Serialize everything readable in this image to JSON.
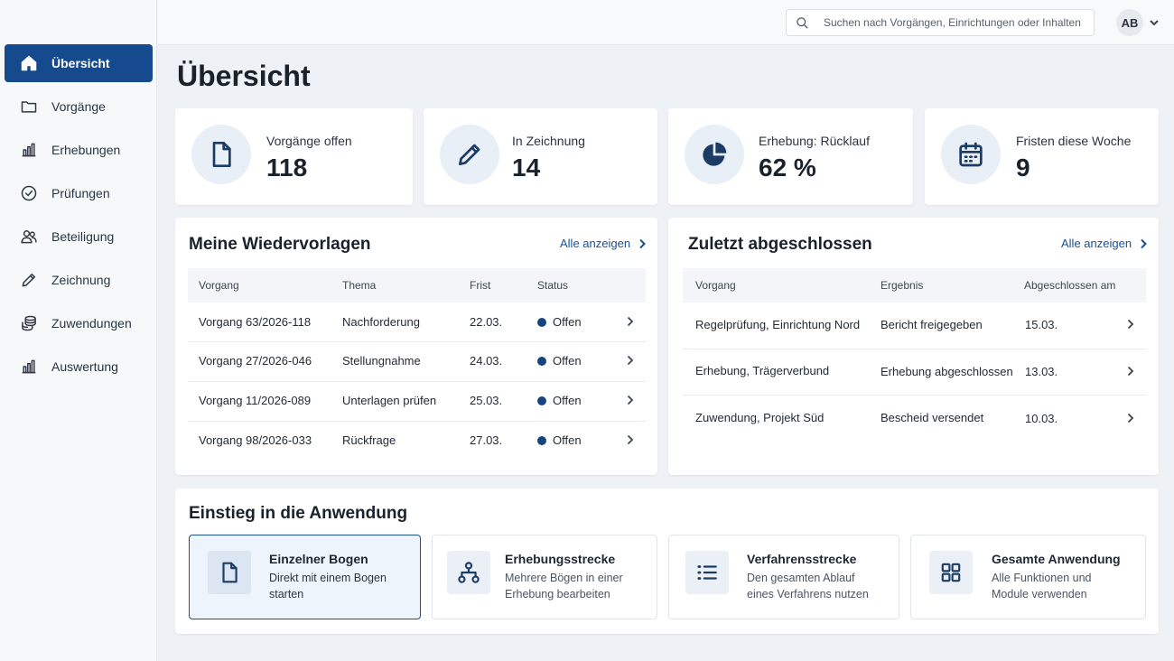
{
  "sidebar": {
    "items": [
      {
        "label": "Übersicht",
        "icon": "home-icon",
        "active": true
      },
      {
        "label": "Vorgänge",
        "icon": "folder-icon"
      },
      {
        "label": "Erhebungen",
        "icon": "bar-chart-icon"
      },
      {
        "label": "Prüfungen",
        "icon": "check-circle-icon"
      },
      {
        "label": "Beteiligung",
        "icon": "users-icon"
      },
      {
        "label": "Zeichnung",
        "icon": "pencil-icon"
      },
      {
        "label": "Zuwendungen",
        "icon": "coins-icon"
      },
      {
        "label": "Auswertung",
        "icon": "bar-chart-icon"
      }
    ]
  },
  "header": {
    "search_placeholder": "Suchen nach Vorgängen, Einrichtungen oder Inhalten",
    "user_initials": "AB"
  },
  "page": {
    "title": "Übersicht"
  },
  "kpis": [
    {
      "label": "Vorgänge offen",
      "value": "118",
      "icon": "document-icon"
    },
    {
      "label": "In Zeichnung",
      "value": "14",
      "icon": "pencil-icon"
    },
    {
      "label": "Erhebung: Rücklauf",
      "value": "62 %",
      "icon": "pie-chart-icon"
    },
    {
      "label": "Fristen diese Woche",
      "value": "9",
      "icon": "calendar-icon"
    }
  ],
  "wiedervorlagen": {
    "title": "Meine Wiedervorlagen",
    "link": "Alle anzeigen",
    "columns": [
      "Vorgang",
      "Thema",
      "Frist",
      "Status"
    ],
    "rows": [
      {
        "vorgang": "Vorgang 63/2026-118",
        "thema": "Nachforderung",
        "frist": "22.03.",
        "status": "Offen"
      },
      {
        "vorgang": "Vorgang 27/2026-046",
        "thema": "Stellungnahme",
        "frist": "24.03.",
        "status": "Offen"
      },
      {
        "vorgang": "Vorgang 11/2026-089",
        "thema": "Unterlagen prüfen",
        "frist": "25.03.",
        "status": "Offen"
      },
      {
        "vorgang": "Vorgang 98/2026-033",
        "thema": "Rückfrage",
        "frist": "27.03.",
        "status": "Offen"
      }
    ]
  },
  "abgeschlossen": {
    "title": "Zuletzt abgeschlossen",
    "link": "Alle anzeigen",
    "columns": [
      "Vorgang",
      "Ergebnis",
      "Abgeschlossen am"
    ],
    "rows": [
      {
        "vorgang": "Regelprüfung, Einrichtung Nord",
        "ergebnis": "Bericht freigegeben",
        "datum": "15.03."
      },
      {
        "vorgang": "Erhebung, Trägerverbund",
        "ergebnis": "Erhebung abgeschlossen",
        "datum": "13.03."
      },
      {
        "vorgang": "Zuwendung, Projekt Süd",
        "ergebnis": "Bescheid versendet",
        "datum": "10.03."
      }
    ]
  },
  "einstieg": {
    "title": "Einstieg in die Anwendung",
    "tiles": [
      {
        "title": "Einzelner Bogen",
        "line1": "Direkt mit einem Bogen",
        "line2": "starten",
        "icon": "document-icon",
        "selected": true
      },
      {
        "title": "Erhebungsstrecke",
        "line1": "Mehrere Bögen in einer",
        "line2": "Erhebung bearbeiten",
        "icon": "hierarchy-icon"
      },
      {
        "title": "Verfahrensstrecke",
        "line1": "Den gesamten Ablauf",
        "line2": "eines Verfahrens nutzen",
        "icon": "list-icon"
      },
      {
        "title": "Gesamte Anwendung",
        "line1": "Alle Funktionen und",
        "line2": "Module verwenden",
        "icon": "grid-icon"
      }
    ]
  },
  "colors": {
    "primary": "#164a8e",
    "status_dot": "#17437f",
    "link": "#1a4f95"
  }
}
